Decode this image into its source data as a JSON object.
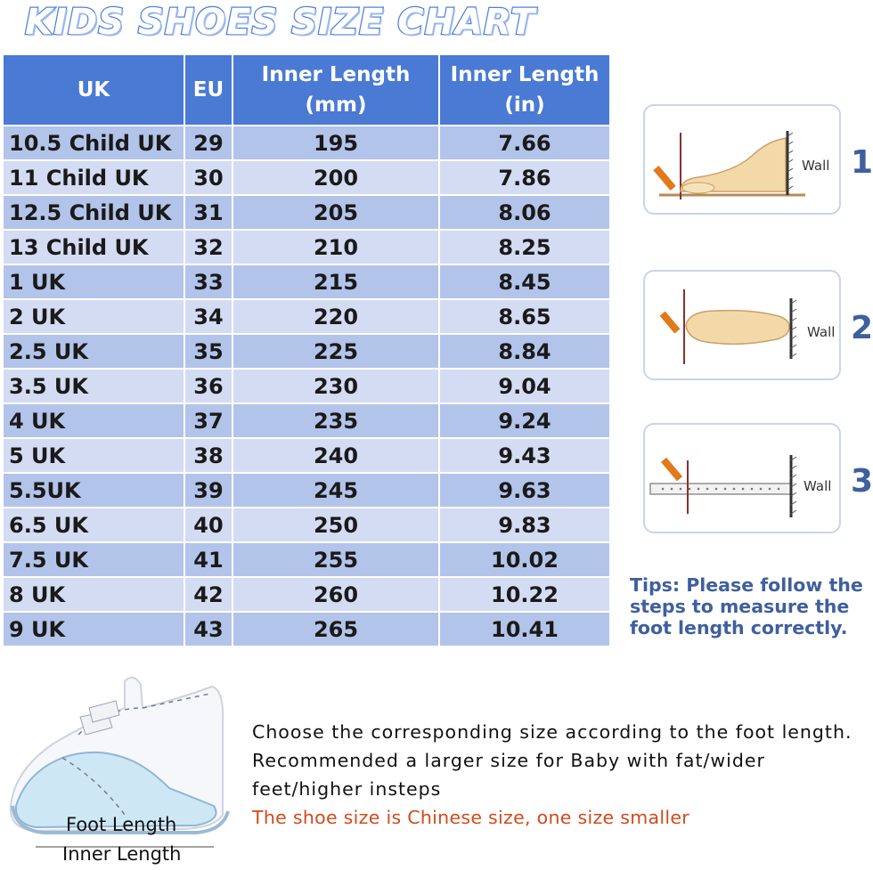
{
  "title": "KIDS SHOES SIZE CHART",
  "table": {
    "headers": {
      "uk": "UK",
      "eu": "EU",
      "mm_line1": "Inner Length",
      "mm_line2": "(mm)",
      "in_line1": "Inner Length",
      "in_line2": "(in)"
    },
    "rows": [
      {
        "uk": "10.5 Child UK",
        "eu": "29",
        "mm": "195",
        "in": "7.66"
      },
      {
        "uk": "11 Child UK",
        "eu": "30",
        "mm": "200",
        "in": "7.86"
      },
      {
        "uk": "12.5 Child UK",
        "eu": "31",
        "mm": "205",
        "in": "8.06"
      },
      {
        "uk": "13 Child UK",
        "eu": "32",
        "mm": "210",
        "in": "8.25"
      },
      {
        "uk": "1 UK",
        "eu": "33",
        "mm": "215",
        "in": "8.45"
      },
      {
        "uk": "2 UK",
        "eu": "34",
        "mm": "220",
        "in": "8.65"
      },
      {
        "uk": "2.5 UK",
        "eu": "35",
        "mm": "225",
        "in": "8.84"
      },
      {
        "uk": "3.5 UK",
        "eu": "36",
        "mm": "230",
        "in": "9.04"
      },
      {
        "uk": "4 UK",
        "eu": "37",
        "mm": "235",
        "in": "9.24"
      },
      {
        "uk": "5 UK",
        "eu": "38",
        "mm": "240",
        "in": "9.43"
      },
      {
        "uk": "5.5UK",
        "eu": "39",
        "mm": "245",
        "in": "9.63"
      },
      {
        "uk": "6.5 UK",
        "eu": "40",
        "mm": "250",
        "in": "9.83"
      },
      {
        "uk": "7.5 UK",
        "eu": "41",
        "mm": "255",
        "in": "10.02"
      },
      {
        "uk": "8 UK",
        "eu": "42",
        "mm": "260",
        "in": "10.22"
      },
      {
        "uk": "9 UK",
        "eu": "43",
        "mm": "265",
        "in": "10.41"
      }
    ]
  },
  "steps": [
    {
      "number": "1",
      "wall_label": "Wall"
    },
    {
      "number": "2",
      "wall_label": "Wall"
    },
    {
      "number": "3",
      "wall_label": "Wall"
    }
  ],
  "tips": "Tips: Please follow the steps to measure the foot length correctly.",
  "description": "Choose the corresponding size according to the foot length. Recommended a larger size for Baby with fat/wider feet/higher insteps",
  "note": "The shoe size is Chinese size, one size smaller",
  "shoe_labels": {
    "foot_length": "Foot Length",
    "inner_length": "Inner Length"
  },
  "colors": {
    "header_bg": "#4a7ad4",
    "row_odd": "#b3c4ea",
    "row_even": "#d3dcf3",
    "tips_text": "#3f5f9e",
    "note_text": "#d24a1c"
  }
}
